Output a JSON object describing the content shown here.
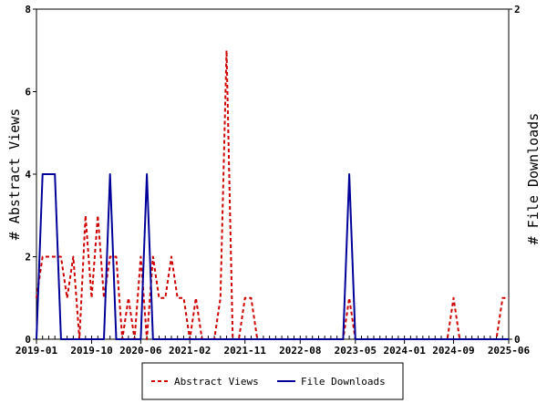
{
  "chart_data": {
    "type": "line",
    "title": "",
    "xlabel": "",
    "ylabel": "# Abstract Views",
    "y2label": "# File Downloads",
    "x_ticks": [
      "2019-01",
      "2019-10",
      "2020-06",
      "2021-02",
      "2021-11",
      "2022-08",
      "2023-05",
      "2024-01",
      "2024-09",
      "2025-06"
    ],
    "ylim": [
      0,
      8
    ],
    "y_ticks": [
      0,
      2,
      4,
      6,
      8
    ],
    "y2lim": [
      0,
      2
    ],
    "y2_ticks": [
      0,
      2
    ],
    "grid": false,
    "legend_position": "bottom",
    "series": [
      {
        "name": "Abstract Views",
        "axis": "left",
        "color": "#cc0000",
        "style": "dashed",
        "points": [
          [
            "2019-01",
            1
          ],
          [
            "2019-02",
            2
          ],
          [
            "2019-03",
            2
          ],
          [
            "2019-04",
            2
          ],
          [
            "2019-05",
            2
          ],
          [
            "2019-06",
            1
          ],
          [
            "2019-07",
            2
          ],
          [
            "2019-08",
            0
          ],
          [
            "2019-09",
            3
          ],
          [
            "2019-10",
            1
          ],
          [
            "2019-11",
            3
          ],
          [
            "2019-12",
            1
          ],
          [
            "2020-01",
            2
          ],
          [
            "2020-02",
            2
          ],
          [
            "2020-03",
            0
          ],
          [
            "2020-04",
            1
          ],
          [
            "2020-05",
            0
          ],
          [
            "2020-06",
            2
          ],
          [
            "2020-07",
            0
          ],
          [
            "2020-08",
            2
          ],
          [
            "2020-09",
            1
          ],
          [
            "2020-10",
            1
          ],
          [
            "2020-11",
            2
          ],
          [
            "2020-12",
            1
          ],
          [
            "2021-01",
            1
          ],
          [
            "2021-02",
            0
          ],
          [
            "2021-03",
            1
          ],
          [
            "2021-04",
            0
          ],
          [
            "2021-05",
            0
          ],
          [
            "2021-06",
            0
          ],
          [
            "2021-07",
            1
          ],
          [
            "2021-08",
            7
          ],
          [
            "2021-09",
            0
          ],
          [
            "2021-10",
            0
          ],
          [
            "2021-11",
            1
          ],
          [
            "2021-12",
            1
          ],
          [
            "2022-01",
            0
          ],
          [
            "2022-02",
            0
          ],
          [
            "2022-03",
            0
          ],
          [
            "2022-04",
            0
          ],
          [
            "2022-05",
            0
          ],
          [
            "2022-06",
            0
          ],
          [
            "2022-07",
            0
          ],
          [
            "2022-08",
            0
          ],
          [
            "2022-09",
            0
          ],
          [
            "2022-10",
            0
          ],
          [
            "2022-11",
            0
          ],
          [
            "2022-12",
            0
          ],
          [
            "2023-01",
            0
          ],
          [
            "2023-02",
            0
          ],
          [
            "2023-03",
            0
          ],
          [
            "2023-04",
            1
          ],
          [
            "2023-05",
            0
          ],
          [
            "2023-06",
            0
          ],
          [
            "2023-07",
            0
          ],
          [
            "2023-08",
            0
          ],
          [
            "2023-09",
            0
          ],
          [
            "2023-10",
            0
          ],
          [
            "2023-11",
            0
          ],
          [
            "2023-12",
            0
          ],
          [
            "2024-01",
            0
          ],
          [
            "2024-02",
            0
          ],
          [
            "2024-03",
            0
          ],
          [
            "2024-04",
            0
          ],
          [
            "2024-05",
            0
          ],
          [
            "2024-06",
            0
          ],
          [
            "2024-07",
            0
          ],
          [
            "2024-08",
            0
          ],
          [
            "2024-09",
            1
          ],
          [
            "2024-10",
            0
          ],
          [
            "2024-11",
            0
          ],
          [
            "2024-12",
            0
          ],
          [
            "2025-01",
            0
          ],
          [
            "2025-02",
            0
          ],
          [
            "2025-03",
            0
          ],
          [
            "2025-04",
            0
          ],
          [
            "2025-05",
            1
          ],
          [
            "2025-06",
            1
          ]
        ]
      },
      {
        "name": "File Downloads",
        "axis": "right",
        "color": "#000099",
        "style": "solid",
        "points": [
          [
            "2019-01",
            0
          ],
          [
            "2019-02",
            1
          ],
          [
            "2019-03",
            1
          ],
          [
            "2019-04",
            1
          ],
          [
            "2019-05",
            0
          ],
          [
            "2019-06",
            0
          ],
          [
            "2019-07",
            0
          ],
          [
            "2019-08",
            0
          ],
          [
            "2019-09",
            0
          ],
          [
            "2019-10",
            0
          ],
          [
            "2019-11",
            0
          ],
          [
            "2019-12",
            0
          ],
          [
            "2020-01",
            1
          ],
          [
            "2020-02",
            0
          ],
          [
            "2020-03",
            0
          ],
          [
            "2020-04",
            0
          ],
          [
            "2020-05",
            0
          ],
          [
            "2020-06",
            0
          ],
          [
            "2020-07",
            1
          ],
          [
            "2020-08",
            0
          ],
          [
            "2020-09",
            0
          ],
          [
            "2020-10",
            0
          ],
          [
            "2020-11",
            0
          ],
          [
            "2020-12",
            0
          ],
          [
            "2021-01",
            0
          ],
          [
            "2021-02",
            0
          ],
          [
            "2021-03",
            0
          ],
          [
            "2021-04",
            0
          ],
          [
            "2021-05",
            0
          ],
          [
            "2021-06",
            0
          ],
          [
            "2021-07",
            0
          ],
          [
            "2021-08",
            0
          ],
          [
            "2021-09",
            0
          ],
          [
            "2021-10",
            0
          ],
          [
            "2021-11",
            0
          ],
          [
            "2021-12",
            0
          ],
          [
            "2022-01",
            0
          ],
          [
            "2022-02",
            0
          ],
          [
            "2022-03",
            0
          ],
          [
            "2022-04",
            0
          ],
          [
            "2022-05",
            0
          ],
          [
            "2022-06",
            0
          ],
          [
            "2022-07",
            0
          ],
          [
            "2022-08",
            0
          ],
          [
            "2022-09",
            0
          ],
          [
            "2022-10",
            0
          ],
          [
            "2022-11",
            0
          ],
          [
            "2022-12",
            0
          ],
          [
            "2023-01",
            0
          ],
          [
            "2023-02",
            0
          ],
          [
            "2023-03",
            0
          ],
          [
            "2023-04",
            1
          ],
          [
            "2023-05",
            0
          ],
          [
            "2023-06",
            0
          ],
          [
            "2023-07",
            0
          ],
          [
            "2023-08",
            0
          ],
          [
            "2023-09",
            0
          ],
          [
            "2023-10",
            0
          ],
          [
            "2023-11",
            0
          ],
          [
            "2023-12",
            0
          ],
          [
            "2024-01",
            0
          ],
          [
            "2024-02",
            0
          ],
          [
            "2024-03",
            0
          ],
          [
            "2024-04",
            0
          ],
          [
            "2024-05",
            0
          ],
          [
            "2024-06",
            0
          ],
          [
            "2024-07",
            0
          ],
          [
            "2024-08",
            0
          ],
          [
            "2024-09",
            0
          ],
          [
            "2024-10",
            0
          ],
          [
            "2024-11",
            0
          ],
          [
            "2024-12",
            0
          ],
          [
            "2025-01",
            0
          ],
          [
            "2025-02",
            0
          ],
          [
            "2025-03",
            0
          ],
          [
            "2025-04",
            0
          ],
          [
            "2025-05",
            0
          ],
          [
            "2025-06",
            0
          ]
        ]
      }
    ]
  }
}
